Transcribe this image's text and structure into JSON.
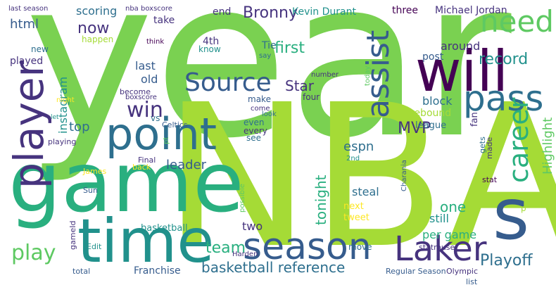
{
  "palette": {
    "background": "#ffffff",
    "dark_purple": "#440154",
    "indigo": "#46337e",
    "slate_blue": "#365c8d",
    "steel_blue": "#2e6f8e",
    "teal": "#21918c",
    "sea_green": "#29af7f",
    "green": "#5ec962",
    "lime": "#7ad151",
    "yellow_green": "#a5db36",
    "yellow": "#fde725"
  },
  "words": [
    {
      "text": "year",
      "color": "#7ad151"
    },
    {
      "text": "NBA",
      "color": "#a5db36"
    },
    {
      "text": "game",
      "color": "#29af7f"
    },
    {
      "text": "time",
      "color": "#21918c"
    },
    {
      "text": "will",
      "color": "#440154"
    },
    {
      "text": "point",
      "color": "#2e6f8e"
    },
    {
      "text": "player",
      "color": "#46337e"
    },
    {
      "text": "pass",
      "color": "#2e6f8e"
    },
    {
      "text": "season",
      "color": "#365c8d"
    },
    {
      "text": "s",
      "color": "#365c8d"
    },
    {
      "text": "Laker",
      "color": "#46337e"
    },
    {
      "text": "need",
      "color": "#5ec962"
    },
    {
      "text": "assist",
      "color": "#365c8d"
    },
    {
      "text": "career",
      "color": "#29af7f"
    },
    {
      "text": "Source",
      "color": "#365c8d"
    },
    {
      "text": "play",
      "color": "#5ec962"
    },
    {
      "text": "win",
      "color": "#46337e"
    },
    {
      "text": "basketball reference",
      "color": "#2e6f8e"
    },
    {
      "text": "Playoff",
      "color": "#2e6f8e"
    },
    {
      "text": "MVP",
      "color": "#46337e"
    },
    {
      "text": "first",
      "color": "#29af7f"
    },
    {
      "text": "record",
      "color": "#21918c"
    },
    {
      "text": "now",
      "color": "#46337e"
    },
    {
      "text": "Bronny",
      "color": "#46337e"
    },
    {
      "text": "team",
      "color": "#29af7f"
    },
    {
      "text": "Highlight",
      "color": "#5ec962"
    },
    {
      "text": "tonight",
      "color": "#29af7f"
    },
    {
      "text": "espn",
      "color": "#2e6f8e"
    },
    {
      "text": "top",
      "color": "#2e6f8e"
    },
    {
      "text": "leader",
      "color": "#365c8d"
    },
    {
      "text": "Star",
      "color": "#46337e"
    },
    {
      "text": "one",
      "color": "#29af7f"
    },
    {
      "text": "html",
      "color": "#365c8d"
    },
    {
      "text": "scoring",
      "color": "#2e6f8e"
    },
    {
      "text": "last",
      "color": "#365c8d"
    },
    {
      "text": "block",
      "color": "#2e6f8e"
    },
    {
      "text": "around",
      "color": "#46337e"
    },
    {
      "text": "still",
      "color": "#21918c"
    },
    {
      "text": "per game",
      "color": "#29af7f"
    },
    {
      "text": "old",
      "color": "#365c8d"
    },
    {
      "text": "instagram",
      "color": "#21918c"
    },
    {
      "text": "two",
      "color": "#46337e"
    },
    {
      "text": "steal",
      "color": "#2e6f8e"
    },
    {
      "text": "rebound",
      "color": "#a5db36"
    },
    {
      "text": "Franchise",
      "color": "#365c8d"
    },
    {
      "text": "4th",
      "color": "#46337e"
    },
    {
      "text": "end",
      "color": "#46337e"
    },
    {
      "text": "Kevin Durant",
      "color": "#21918c"
    },
    {
      "text": "Michael Jordan",
      "color": "#46337e"
    },
    {
      "text": "three",
      "color": "#440154"
    },
    {
      "text": "take",
      "color": "#46337e"
    },
    {
      "text": "Tie",
      "color": "#2e6f8e"
    },
    {
      "text": "basketball",
      "color": "#21918c"
    },
    {
      "text": "post",
      "color": "#365c8d"
    },
    {
      "text": "league",
      "color": "#2e6f8e"
    },
    {
      "text": "fan",
      "color": "#46337e"
    },
    {
      "text": "made",
      "color": "#46337e"
    },
    {
      "text": "gets",
      "color": "#2e6f8e"
    },
    {
      "text": "stat",
      "color": "#440154"
    },
    {
      "text": "next",
      "color": "#fde725"
    },
    {
      "text": "tweet",
      "color": "#fde725"
    },
    {
      "text": "move",
      "color": "#2e6f8e"
    },
    {
      "text": "statmuse",
      "color": "#46337e"
    },
    {
      "text": "Regular Season",
      "color": "#365c8d"
    },
    {
      "text": "Olympic",
      "color": "#46337e"
    },
    {
      "text": "list",
      "color": "#365c8d"
    },
    {
      "text": "Edit",
      "color": "#21918c"
    },
    {
      "text": "total",
      "color": "#365c8d"
    },
    {
      "text": "Sun",
      "color": "#365c8d"
    },
    {
      "text": "gameId",
      "color": "#46337e"
    },
    {
      "text": "James",
      "color": "#fde725"
    },
    {
      "text": "back",
      "color": "#fde725"
    },
    {
      "text": "Final",
      "color": "#46337e"
    },
    {
      "text": "vs",
      "color": "#2e6f8e"
    },
    {
      "text": "Celtics",
      "color": "#365c8d"
    },
    {
      "text": "playing",
      "color": "#46337e"
    },
    {
      "text": "let",
      "color": "#21918c"
    },
    {
      "text": "night",
      "color": "#fde725"
    },
    {
      "text": "played",
      "color": "#46337e"
    },
    {
      "text": "new",
      "color": "#2e6f8e"
    },
    {
      "text": "happen",
      "color": "#a5db36"
    },
    {
      "text": "think",
      "color": "#440154"
    },
    {
      "text": "know",
      "color": "#21918c"
    },
    {
      "text": "say",
      "color": "#2e6f8e"
    },
    {
      "text": "number",
      "color": "#46337e"
    },
    {
      "text": "today",
      "color": "#5ec962"
    },
    {
      "text": "four",
      "color": "#46337e"
    },
    {
      "text": "make",
      "color": "#365c8d"
    },
    {
      "text": "come",
      "color": "#46337e"
    },
    {
      "text": "look",
      "color": "#2e6f8e"
    },
    {
      "text": "even",
      "color": "#2e6f8e"
    },
    {
      "text": "every",
      "color": "#46337e"
    },
    {
      "text": "see",
      "color": "#2e6f8e"
    },
    {
      "text": "2nd",
      "color": "#21918c"
    },
    {
      "text": "Charania",
      "color": "#365c8d"
    },
    {
      "text": "possible",
      "color": "#5ec962"
    },
    {
      "text": "Harden",
      "color": "#46337e"
    },
    {
      "text": "p",
      "color": "#a5db36"
    },
    {
      "text": "t",
      "color": "#a5db36"
    },
    {
      "text": "last season",
      "color": "#46337e"
    },
    {
      "text": "nba boxscore",
      "color": "#46337e"
    },
    {
      "text": "boxscore",
      "color": "#46337e"
    },
    {
      "text": "become",
      "color": "#46337e"
    },
    {
      "text": "pt",
      "color": "#5ec962"
    }
  ]
}
